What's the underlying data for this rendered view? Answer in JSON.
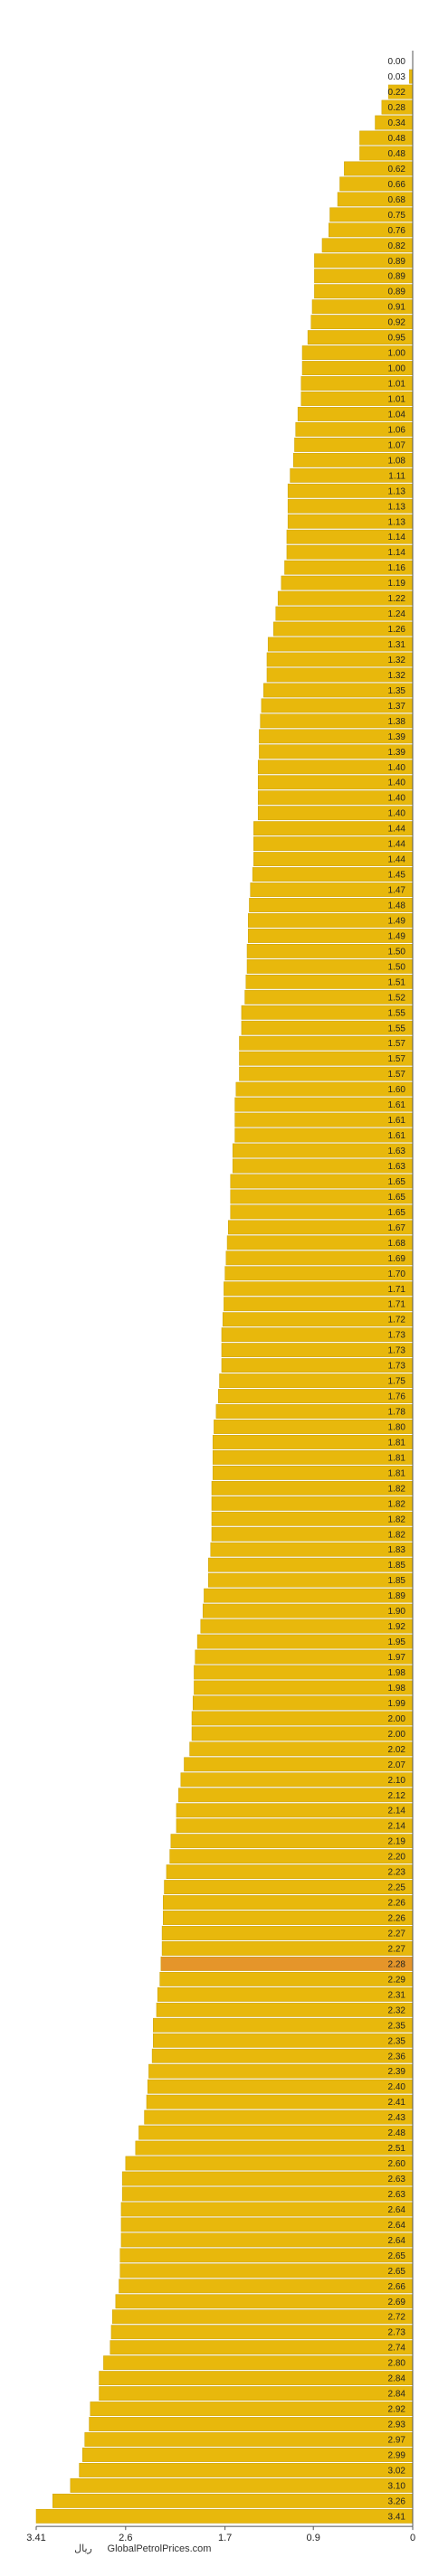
{
  "chart_data": {
    "type": "bar",
    "orientation": "horizontal",
    "x_direction": "reversed",
    "values": [
      0.0,
      0.03,
      0.22,
      0.28,
      0.34,
      0.48,
      0.48,
      0.62,
      0.66,
      0.68,
      0.75,
      0.76,
      0.82,
      0.89,
      0.89,
      0.89,
      0.91,
      0.92,
      0.95,
      1.0,
      1.0,
      1.01,
      1.01,
      1.04,
      1.06,
      1.07,
      1.08,
      1.11,
      1.13,
      1.13,
      1.13,
      1.14,
      1.14,
      1.16,
      1.19,
      1.22,
      1.24,
      1.26,
      1.31,
      1.32,
      1.32,
      1.35,
      1.37,
      1.38,
      1.39,
      1.39,
      1.4,
      1.4,
      1.4,
      1.4,
      1.44,
      1.44,
      1.44,
      1.45,
      1.47,
      1.48,
      1.49,
      1.49,
      1.5,
      1.5,
      1.51,
      1.52,
      1.55,
      1.55,
      1.57,
      1.57,
      1.57,
      1.6,
      1.61,
      1.61,
      1.61,
      1.63,
      1.63,
      1.65,
      1.65,
      1.65,
      1.67,
      1.68,
      1.69,
      1.7,
      1.71,
      1.71,
      1.72,
      1.73,
      1.73,
      1.73,
      1.75,
      1.76,
      1.78,
      1.8,
      1.81,
      1.81,
      1.81,
      1.82,
      1.82,
      1.82,
      1.82,
      1.83,
      1.85,
      1.85,
      1.89,
      1.9,
      1.92,
      1.95,
      1.97,
      1.98,
      1.98,
      1.99,
      2.0,
      2.0,
      2.02,
      2.07,
      2.1,
      2.12,
      2.14,
      2.14,
      2.19,
      2.2,
      2.23,
      2.25,
      2.26,
      2.26,
      2.27,
      2.27,
      2.28,
      2.29,
      2.31,
      2.32,
      2.35,
      2.35,
      2.36,
      2.39,
      2.4,
      2.41,
      2.43,
      2.48,
      2.51,
      2.6,
      2.63,
      2.63,
      2.64,
      2.64,
      2.64,
      2.65,
      2.65,
      2.66,
      2.69,
      2.72,
      2.73,
      2.74,
      2.8,
      2.84,
      2.84,
      2.92,
      2.93,
      2.97,
      2.99,
      3.02,
      3.1,
      3.26,
      3.41
    ],
    "value_labels": [
      "0.00",
      "0.03",
      "0.22",
      "0.28",
      "0.34",
      "0.48",
      "0.48",
      "0.62",
      "0.66",
      "0.68",
      "0.75",
      "0.76",
      "0.82",
      "0.89",
      "0.89",
      "0.89",
      "0.91",
      "0.92",
      "0.95",
      "1.00",
      "1.00",
      "1.01",
      "1.01",
      "1.04",
      "1.06",
      "1.07",
      "1.08",
      "1.11",
      "1.13",
      "1.13",
      "1.13",
      "1.14",
      "1.14",
      "1.16",
      "1.19",
      "1.22",
      "1.24",
      "1.26",
      "1.31",
      "1.32",
      "1.32",
      "1.35",
      "1.37",
      "1.38",
      "1.39",
      "1.39",
      "1.40",
      "1.40",
      "1.40",
      "1.40",
      "1.44",
      "1.44",
      "1.44",
      "1.45",
      "1.47",
      "1.48",
      "1.49",
      "1.49",
      "1.50",
      "1.50",
      "1.51",
      "1.52",
      "1.55",
      "1.55",
      "1.57",
      "1.57",
      "1.57",
      "1.60",
      "1.61",
      "1.61",
      "1.61",
      "1.63",
      "1.63",
      "1.65",
      "1.65",
      "1.65",
      "1.67",
      "1.68",
      "1.69",
      "1.70",
      "1.71",
      "1.71",
      "1.72",
      "1.73",
      "1.73",
      "1.73",
      "1.75",
      "1.76",
      "1.78",
      "1.80",
      "1.81",
      "1.81",
      "1.81",
      "1.82",
      "1.82",
      "1.82",
      "1.82",
      "1.83",
      "1.85",
      "1.85",
      "1.89",
      "1.90",
      "1.92",
      "1.95",
      "1.97",
      "1.98",
      "1.98",
      "1.99",
      "2.00",
      "2.00",
      "2.02",
      "2.07",
      "2.10",
      "2.12",
      "2.14",
      "2.14",
      "2.19",
      "2.20",
      "2.23",
      "2.25",
      "2.26",
      "2.26",
      "2.27",
      "2.27",
      "2.28",
      "2.29",
      "2.31",
      "2.32",
      "2.35",
      "2.35",
      "2.36",
      "2.39",
      "2.40",
      "2.41",
      "2.43",
      "2.48",
      "2.51",
      "2.60",
      "2.63",
      "2.63",
      "2.64",
      "2.64",
      "2.64",
      "2.65",
      "2.65",
      "2.66",
      "2.69",
      "2.72",
      "2.73",
      "2.74",
      "2.80",
      "2.84",
      "2.84",
      "2.92",
      "2.93",
      "2.97",
      "2.99",
      "3.02",
      "3.10",
      "3.26",
      "3.41"
    ],
    "highlight_index": 124,
    "xlim": [
      0,
      3.41
    ],
    "x_ticks": [
      3.41,
      2.6,
      1.7,
      0.9,
      0
    ],
    "x_tick_labels": [
      "3.41",
      "2.6",
      "1.7",
      "0.9",
      "0"
    ],
    "xlabel": "ریال",
    "source": "GlobalPetrolPrices.com",
    "colors": {
      "bar": "#e8b80c",
      "bar_edge": "#c9a007",
      "highlight": "#e5952a",
      "axis": "#555555"
    },
    "grid": false
  }
}
